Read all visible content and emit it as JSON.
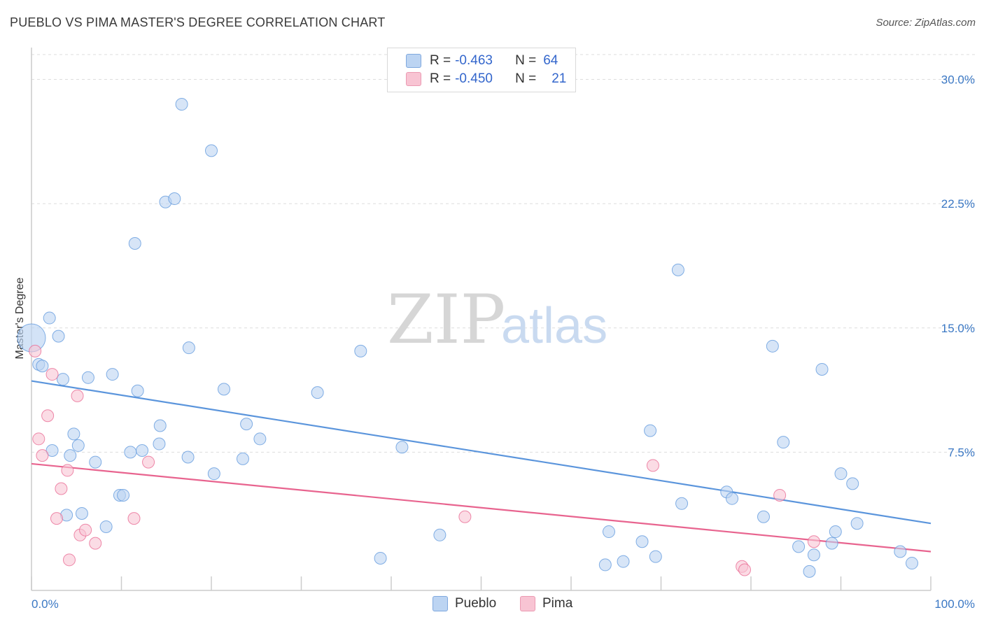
{
  "header": {
    "title": "PUEBLO VS PIMA MASTER'S DEGREE CORRELATION CHART",
    "source": "Source: ZipAtlas.com"
  },
  "legend": {
    "rows": [
      {
        "r_label": "R =",
        "r_value": "-0.463",
        "n_label": "N =",
        "n_value": "64",
        "color": "#a8c8f0"
      },
      {
        "r_label": "R =",
        "r_value": "-0.450",
        "n_label": "N =",
        "n_value": "21",
        "color": "#f7b6c8"
      }
    ]
  },
  "bottom_legend": {
    "items": [
      {
        "label": "Pueblo",
        "color": "#a8c8f0"
      },
      {
        "label": "Pima",
        "color": "#f7b6c8"
      }
    ]
  },
  "watermark": {
    "zip": "ZIP",
    "atlas": "atlas"
  },
  "chart_data": {
    "type": "scatter",
    "title": "PUEBLO VS PIMA MASTER'S DEGREE CORRELATION CHART",
    "xlabel": "",
    "ylabel": "Master's Degree",
    "xlim": [
      0,
      100
    ],
    "ylim": [
      0,
      31.5
    ],
    "x_tick_labels": [
      "0.0%",
      "100.0%"
    ],
    "y_ticks": [
      7.5,
      15.0,
      22.5,
      30.0
    ],
    "y_tick_labels": [
      "7.5%",
      "15.0%",
      "22.5%",
      "30.0%"
    ],
    "grid": true,
    "legend_position": "top-center",
    "series": [
      {
        "name": "Pueblo",
        "color": "#5b95dc",
        "fill": "#bcd4f2",
        "trend": {
          "x": [
            0,
            100
          ],
          "y": [
            11.8,
            3.2
          ]
        },
        "points": [
          {
            "x": 0.0,
            "y": 14.4,
            "big": true
          },
          {
            "x": 0.8,
            "y": 12.8
          },
          {
            "x": 1.2,
            "y": 12.7
          },
          {
            "x": 2.0,
            "y": 15.6
          },
          {
            "x": 2.3,
            "y": 7.6
          },
          {
            "x": 3.0,
            "y": 14.5
          },
          {
            "x": 3.5,
            "y": 11.9
          },
          {
            "x": 3.9,
            "y": 3.7
          },
          {
            "x": 4.3,
            "y": 7.3
          },
          {
            "x": 4.7,
            "y": 8.6
          },
          {
            "x": 5.2,
            "y": 7.9
          },
          {
            "x": 5.6,
            "y": 3.8
          },
          {
            "x": 6.3,
            "y": 12.0
          },
          {
            "x": 7.1,
            "y": 6.9
          },
          {
            "x": 8.3,
            "y": 3.0
          },
          {
            "x": 9.0,
            "y": 12.2
          },
          {
            "x": 9.8,
            "y": 4.9
          },
          {
            "x": 10.2,
            "y": 4.9
          },
          {
            "x": 11.0,
            "y": 7.5
          },
          {
            "x": 11.8,
            "y": 11.2
          },
          {
            "x": 12.3,
            "y": 7.6
          },
          {
            "x": 11.5,
            "y": 20.1
          },
          {
            "x": 14.2,
            "y": 8.0
          },
          {
            "x": 14.3,
            "y": 9.1
          },
          {
            "x": 14.9,
            "y": 22.6
          },
          {
            "x": 15.9,
            "y": 22.8
          },
          {
            "x": 16.7,
            "y": 28.5
          },
          {
            "x": 17.4,
            "y": 7.2
          },
          {
            "x": 17.5,
            "y": 13.8
          },
          {
            "x": 20.0,
            "y": 25.7
          },
          {
            "x": 20.3,
            "y": 6.2
          },
          {
            "x": 21.4,
            "y": 11.3
          },
          {
            "x": 23.9,
            "y": 9.2
          },
          {
            "x": 23.5,
            "y": 7.1
          },
          {
            "x": 25.4,
            "y": 8.3
          },
          {
            "x": 31.8,
            "y": 11.1
          },
          {
            "x": 36.6,
            "y": 13.6
          },
          {
            "x": 38.8,
            "y": 1.1
          },
          {
            "x": 41.2,
            "y": 7.8
          },
          {
            "x": 45.4,
            "y": 2.5
          },
          {
            "x": 63.8,
            "y": 0.7
          },
          {
            "x": 64.2,
            "y": 2.7
          },
          {
            "x": 65.8,
            "y": 0.9
          },
          {
            "x": 67.9,
            "y": 2.1
          },
          {
            "x": 68.8,
            "y": 8.8
          },
          {
            "x": 69.4,
            "y": 1.2
          },
          {
            "x": 71.9,
            "y": 18.5
          },
          {
            "x": 72.3,
            "y": 4.4
          },
          {
            "x": 77.3,
            "y": 5.1
          },
          {
            "x": 77.9,
            "y": 4.7
          },
          {
            "x": 81.4,
            "y": 3.6
          },
          {
            "x": 82.4,
            "y": 13.9
          },
          {
            "x": 83.6,
            "y": 8.1
          },
          {
            "x": 85.3,
            "y": 1.8
          },
          {
            "x": 86.5,
            "y": 0.3
          },
          {
            "x": 87.0,
            "y": 1.3
          },
          {
            "x": 87.9,
            "y": 12.5
          },
          {
            "x": 89.0,
            "y": 2.0
          },
          {
            "x": 89.4,
            "y": 2.7
          },
          {
            "x": 90.0,
            "y": 6.2
          },
          {
            "x": 91.3,
            "y": 5.6
          },
          {
            "x": 91.8,
            "y": 3.2
          },
          {
            "x": 96.6,
            "y": 1.5
          },
          {
            "x": 97.9,
            "y": 0.8
          }
        ]
      },
      {
        "name": "Pima",
        "color": "#e8648f",
        "fill": "#f8c4d3",
        "trend": {
          "x": [
            0,
            100
          ],
          "y": [
            6.8,
            1.5
          ]
        },
        "points": [
          {
            "x": 0.4,
            "y": 13.6
          },
          {
            "x": 0.8,
            "y": 8.3
          },
          {
            "x": 1.2,
            "y": 7.3
          },
          {
            "x": 1.8,
            "y": 9.7
          },
          {
            "x": 2.3,
            "y": 12.2
          },
          {
            "x": 2.8,
            "y": 3.5
          },
          {
            "x": 3.3,
            "y": 5.3
          },
          {
            "x": 4.0,
            "y": 6.4
          },
          {
            "x": 4.2,
            "y": 1.0
          },
          {
            "x": 5.1,
            "y": 10.9
          },
          {
            "x": 5.4,
            "y": 2.5
          },
          {
            "x": 6.0,
            "y": 2.8
          },
          {
            "x": 7.1,
            "y": 2.0
          },
          {
            "x": 11.4,
            "y": 3.5
          },
          {
            "x": 13.0,
            "y": 6.9
          },
          {
            "x": 48.2,
            "y": 3.6
          },
          {
            "x": 69.1,
            "y": 6.7
          },
          {
            "x": 79.0,
            "y": 0.6
          },
          {
            "x": 79.3,
            "y": 0.4
          },
          {
            "x": 83.2,
            "y": 4.9
          },
          {
            "x": 87.0,
            "y": 2.1
          }
        ]
      }
    ]
  }
}
